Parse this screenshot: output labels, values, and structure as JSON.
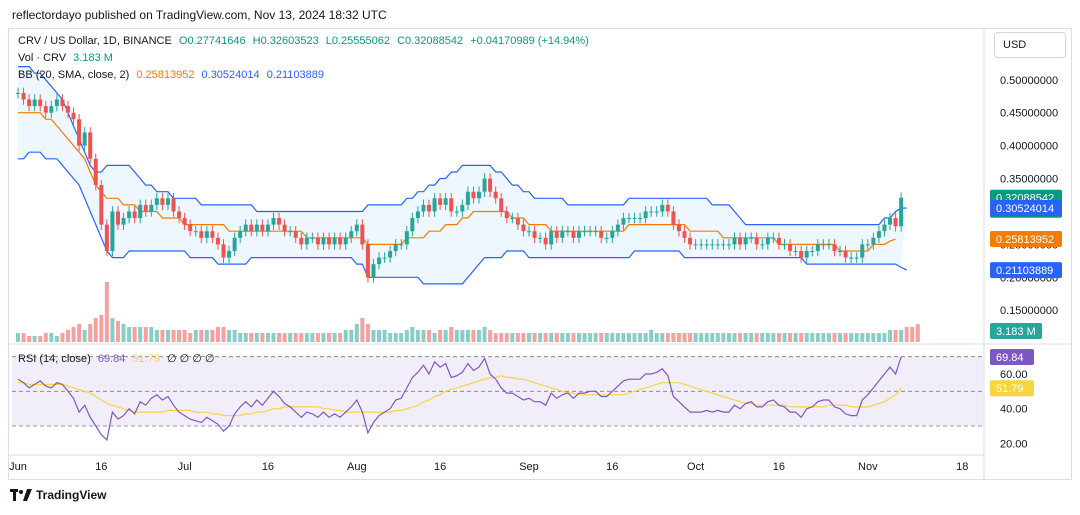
{
  "header": {
    "publish_text": "reflectordayo published on TradingView.com, Nov 13, 2024 18:32 UTC",
    "currency": "USD"
  },
  "legend": {
    "main": {
      "title": "CRV / US Dollar, 1D, BINANCE",
      "open": "O0.27741646",
      "high": "H0.32603523",
      "low": "L0.25555062",
      "close": "C0.32088542",
      "change": "+0.04170989 (+14.94%)"
    },
    "vol": {
      "label": "Vol · CRV",
      "value": "3.183 M"
    },
    "bb": {
      "label": "BB (20, SMA, close, 2)",
      "basis": "0.25813952",
      "upper": "0.30524014",
      "lower": "0.21103889"
    },
    "rsi": {
      "label": "RSI (14, close)",
      "value": "69.84",
      "ma": "51.79",
      "extra": "∅ ∅ ∅ ∅"
    }
  },
  "footer": {
    "brand": "TradingView"
  },
  "colors": {
    "up": "#26a69a",
    "down": "#ef5350",
    "bb_basis": "#f57c00",
    "bb_band": "#2962ff",
    "bb_fill": "#e3f2fd",
    "rsi_line": "#7e57c2",
    "rsi_ma": "#f7d540",
    "rsi_bg": "#ede7f6",
    "last_price": "#089981"
  },
  "chart_data": {
    "type": "candlestick",
    "xlabel": "",
    "ylabel": "",
    "price_axis": {
      "ticks": [
        "0.50000000",
        "0.45000000",
        "0.40000000",
        "0.35000000",
        "0.30000000",
        "0.25000000",
        "0.20000000",
        "0.15000000"
      ],
      "tick_values": [
        0.5,
        0.45,
        0.4,
        0.35,
        0.3,
        0.25,
        0.2,
        0.15
      ],
      "range": [
        0.12,
        0.53
      ]
    },
    "time_axis": {
      "ticks": [
        "Jun",
        "16",
        "Jul",
        "16",
        "Aug",
        "16",
        "Sep",
        "16",
        "Oct",
        "16",
        "Nov",
        "18"
      ],
      "tick_day_index": [
        0,
        15,
        30,
        45,
        61,
        76,
        92,
        107,
        122,
        137,
        153,
        170
      ]
    },
    "price_tags": [
      {
        "label": "0.32088542",
        "sub": "05:27:50",
        "value": 0.3209,
        "color": "#089981"
      },
      {
        "label": "0.30524014",
        "value": 0.3052,
        "color": "#2962ff"
      },
      {
        "label": "0.25813952",
        "value": 0.2581,
        "color": "#f57c00"
      },
      {
        "label": "0.21103889",
        "value": 0.211,
        "color": "#2962ff"
      }
    ],
    "vol_tag": {
      "label": "3.183 M",
      "color": "#26a69a"
    },
    "rsi_axis": {
      "ticks": [
        "60.00",
        "40.00",
        "20.00"
      ],
      "tick_values": [
        60,
        40,
        20
      ],
      "range": [
        15,
        75
      ],
      "upper_band": 70,
      "mid": 50,
      "lower_band": 30
    },
    "rsi_tags": [
      {
        "label": "69.84",
        "value": 69.84,
        "color": "#7e57c2"
      },
      {
        "label": "51.79",
        "value": 51.79,
        "color": "#f7d540"
      }
    ],
    "closes": [
      0.48,
      0.47,
      0.46,
      0.47,
      0.46,
      0.45,
      0.46,
      0.47,
      0.46,
      0.45,
      0.44,
      0.4,
      0.42,
      0.38,
      0.34,
      0.28,
      0.24,
      0.3,
      0.28,
      0.29,
      0.3,
      0.29,
      0.31,
      0.3,
      0.31,
      0.32,
      0.31,
      0.32,
      0.3,
      0.29,
      0.28,
      0.27,
      0.27,
      0.26,
      0.27,
      0.26,
      0.25,
      0.23,
      0.24,
      0.26,
      0.27,
      0.28,
      0.27,
      0.28,
      0.27,
      0.28,
      0.29,
      0.28,
      0.27,
      0.27,
      0.26,
      0.25,
      0.26,
      0.26,
      0.25,
      0.26,
      0.25,
      0.26,
      0.25,
      0.26,
      0.27,
      0.28,
      0.25,
      0.2,
      0.22,
      0.23,
      0.23,
      0.24,
      0.25,
      0.25,
      0.27,
      0.29,
      0.3,
      0.31,
      0.3,
      0.32,
      0.31,
      0.32,
      0.3,
      0.3,
      0.31,
      0.33,
      0.32,
      0.33,
      0.35,
      0.33,
      0.32,
      0.3,
      0.29,
      0.29,
      0.28,
      0.27,
      0.27,
      0.26,
      0.26,
      0.25,
      0.27,
      0.26,
      0.27,
      0.27,
      0.26,
      0.27,
      0.27,
      0.27,
      0.27,
      0.26,
      0.26,
      0.27,
      0.28,
      0.29,
      0.29,
      0.29,
      0.29,
      0.3,
      0.3,
      0.3,
      0.31,
      0.3,
      0.28,
      0.27,
      0.26,
      0.25,
      0.25,
      0.25,
      0.25,
      0.25,
      0.25,
      0.25,
      0.25,
      0.26,
      0.25,
      0.26,
      0.26,
      0.25,
      0.25,
      0.26,
      0.26,
      0.25,
      0.25,
      0.24,
      0.24,
      0.23,
      0.24,
      0.24,
      0.25,
      0.25,
      0.25,
      0.24,
      0.24,
      0.23,
      0.23,
      0.23,
      0.25,
      0.25,
      0.26,
      0.27,
      0.28,
      0.29,
      0.2774,
      0.3209
    ],
    "bb_upper": [
      0.52,
      0.52,
      0.52,
      0.51,
      0.51,
      0.5,
      0.49,
      0.48,
      0.47,
      0.45,
      0.43,
      0.41,
      0.39,
      0.37,
      0.36,
      0.36,
      0.37,
      0.37,
      0.37,
      0.37,
      0.37,
      0.36,
      0.35,
      0.34,
      0.34,
      0.33,
      0.33,
      0.33,
      0.32,
      0.32,
      0.32,
      0.32,
      0.32,
      0.31,
      0.31,
      0.31,
      0.31,
      0.31,
      0.31,
      0.31,
      0.31,
      0.31,
      0.31,
      0.3,
      0.3,
      0.3,
      0.3,
      0.3,
      0.3,
      0.3,
      0.3,
      0.3,
      0.3,
      0.3,
      0.3,
      0.3,
      0.3,
      0.3,
      0.3,
      0.3,
      0.3,
      0.3,
      0.3,
      0.31,
      0.31,
      0.31,
      0.31,
      0.31,
      0.31,
      0.31,
      0.32,
      0.32,
      0.33,
      0.33,
      0.34,
      0.34,
      0.35,
      0.35,
      0.36,
      0.36,
      0.37,
      0.37,
      0.37,
      0.37,
      0.37,
      0.37,
      0.36,
      0.36,
      0.35,
      0.34,
      0.34,
      0.33,
      0.33,
      0.32,
      0.32,
      0.32,
      0.32,
      0.32,
      0.32,
      0.31,
      0.31,
      0.31,
      0.31,
      0.31,
      0.31,
      0.31,
      0.31,
      0.31,
      0.31,
      0.31,
      0.32,
      0.32,
      0.32,
      0.32,
      0.32,
      0.32,
      0.32,
      0.32,
      0.32,
      0.32,
      0.32,
      0.32,
      0.32,
      0.32,
      0.32,
      0.31,
      0.31,
      0.31,
      0.31,
      0.3,
      0.29,
      0.28,
      0.28,
      0.28,
      0.28,
      0.28,
      0.28,
      0.28,
      0.28,
      0.28,
      0.28,
      0.28,
      0.28,
      0.28,
      0.28,
      0.28,
      0.28,
      0.28,
      0.28,
      0.28,
      0.28,
      0.28,
      0.28,
      0.28,
      0.28,
      0.28,
      0.29,
      0.29,
      0.3,
      0.305,
      0.3052
    ],
    "bb_basis": [
      0.45,
      0.45,
      0.45,
      0.45,
      0.45,
      0.44,
      0.44,
      0.43,
      0.42,
      0.41,
      0.4,
      0.39,
      0.38,
      0.36,
      0.34,
      0.33,
      0.32,
      0.32,
      0.32,
      0.31,
      0.31,
      0.31,
      0.3,
      0.3,
      0.3,
      0.3,
      0.29,
      0.29,
      0.29,
      0.29,
      0.28,
      0.28,
      0.28,
      0.28,
      0.28,
      0.28,
      0.28,
      0.28,
      0.27,
      0.27,
      0.27,
      0.27,
      0.27,
      0.27,
      0.27,
      0.27,
      0.27,
      0.27,
      0.27,
      0.27,
      0.27,
      0.27,
      0.26,
      0.26,
      0.26,
      0.26,
      0.26,
      0.26,
      0.26,
      0.26,
      0.26,
      0.26,
      0.26,
      0.25,
      0.25,
      0.25,
      0.25,
      0.25,
      0.25,
      0.25,
      0.26,
      0.26,
      0.26,
      0.26,
      0.27,
      0.27,
      0.27,
      0.28,
      0.28,
      0.28,
      0.29,
      0.29,
      0.3,
      0.3,
      0.3,
      0.3,
      0.3,
      0.3,
      0.3,
      0.29,
      0.29,
      0.29,
      0.28,
      0.28,
      0.28,
      0.28,
      0.27,
      0.27,
      0.27,
      0.27,
      0.27,
      0.27,
      0.27,
      0.27,
      0.27,
      0.27,
      0.27,
      0.27,
      0.27,
      0.27,
      0.28,
      0.28,
      0.28,
      0.28,
      0.28,
      0.28,
      0.28,
      0.28,
      0.28,
      0.28,
      0.28,
      0.27,
      0.27,
      0.27,
      0.27,
      0.27,
      0.27,
      0.26,
      0.26,
      0.26,
      0.26,
      0.26,
      0.26,
      0.26,
      0.26,
      0.26,
      0.26,
      0.25,
      0.25,
      0.25,
      0.25,
      0.25,
      0.25,
      0.25,
      0.25,
      0.25,
      0.25,
      0.25,
      0.24,
      0.24,
      0.24,
      0.24,
      0.24,
      0.24,
      0.25,
      0.25,
      0.25,
      0.255,
      0.2581
    ],
    "bb_lower": [
      0.38,
      0.38,
      0.39,
      0.39,
      0.39,
      0.38,
      0.38,
      0.38,
      0.37,
      0.36,
      0.35,
      0.34,
      0.32,
      0.3,
      0.28,
      0.26,
      0.24,
      0.23,
      0.23,
      0.23,
      0.24,
      0.24,
      0.24,
      0.24,
      0.24,
      0.24,
      0.24,
      0.24,
      0.24,
      0.24,
      0.24,
      0.23,
      0.23,
      0.23,
      0.23,
      0.23,
      0.22,
      0.22,
      0.22,
      0.22,
      0.22,
      0.22,
      0.23,
      0.23,
      0.23,
      0.23,
      0.23,
      0.23,
      0.23,
      0.23,
      0.23,
      0.23,
      0.23,
      0.23,
      0.23,
      0.23,
      0.23,
      0.23,
      0.23,
      0.23,
      0.23,
      0.22,
      0.22,
      0.2,
      0.2,
      0.2,
      0.2,
      0.2,
      0.2,
      0.2,
      0.2,
      0.2,
      0.2,
      0.19,
      0.19,
      0.19,
      0.19,
      0.19,
      0.19,
      0.19,
      0.19,
      0.2,
      0.21,
      0.22,
      0.23,
      0.23,
      0.23,
      0.23,
      0.24,
      0.24,
      0.24,
      0.24,
      0.23,
      0.23,
      0.23,
      0.23,
      0.23,
      0.23,
      0.23,
      0.23,
      0.23,
      0.23,
      0.23,
      0.23,
      0.23,
      0.23,
      0.23,
      0.23,
      0.23,
      0.23,
      0.23,
      0.24,
      0.24,
      0.24,
      0.24,
      0.24,
      0.24,
      0.24,
      0.24,
      0.24,
      0.23,
      0.23,
      0.23,
      0.23,
      0.23,
      0.23,
      0.23,
      0.23,
      0.23,
      0.23,
      0.23,
      0.23,
      0.23,
      0.23,
      0.23,
      0.23,
      0.23,
      0.23,
      0.23,
      0.23,
      0.23,
      0.23,
      0.22,
      0.22,
      0.22,
      0.22,
      0.22,
      0.22,
      0.22,
      0.22,
      0.22,
      0.22,
      0.22,
      0.22,
      0.22,
      0.22,
      0.22,
      0.22,
      0.22,
      0.215,
      0.211
    ],
    "volume": [
      3,
      3,
      2,
      2,
      2,
      3,
      3,
      2,
      3,
      4,
      5,
      6,
      4,
      6,
      8,
      9,
      20,
      8,
      7,
      6,
      5,
      5,
      5,
      5,
      5,
      4,
      4,
      4,
      4,
      4,
      4,
      3,
      4,
      4,
      4,
      4,
      5,
      5,
      4,
      4,
      3,
      3,
      3,
      3,
      3,
      3,
      3,
      3,
      3,
      3,
      3,
      3,
      3,
      3,
      3,
      3,
      3,
      3,
      3,
      4,
      4,
      6,
      8,
      6,
      4,
      4,
      4,
      3,
      3,
      3,
      4,
      5,
      4,
      4,
      4,
      3,
      4,
      4,
      5,
      4,
      4,
      4,
      4,
      4,
      5,
      4,
      3,
      3,
      3,
      3,
      3,
      3,
      3,
      3,
      3,
      3,
      3,
      3,
      3,
      3,
      3,
      3,
      3,
      3,
      3,
      3,
      3,
      3,
      3,
      3,
      3,
      3,
      3,
      3,
      4,
      3,
      3,
      3,
      3,
      3,
      3,
      3,
      3,
      3,
      3,
      3,
      3,
      3,
      3,
      3,
      3,
      3,
      3,
      3,
      3,
      3,
      3,
      3,
      3,
      3,
      3,
      3,
      3,
      3,
      3,
      3,
      3,
      3,
      3,
      3,
      3,
      3,
      3,
      3,
      3,
      3,
      3,
      4,
      4,
      4,
      5,
      5,
      6
    ],
    "rsi": [
      57,
      55,
      52,
      54,
      56,
      53,
      52,
      55,
      54,
      50,
      46,
      38,
      42,
      35,
      30,
      25,
      22,
      38,
      34,
      36,
      40,
      37,
      44,
      42,
      46,
      48,
      45,
      47,
      42,
      38,
      36,
      34,
      33,
      32,
      35,
      33,
      31,
      27,
      30,
      37,
      41,
      44,
      41,
      45,
      42,
      46,
      50,
      47,
      43,
      41,
      38,
      35,
      38,
      37,
      35,
      38,
      35,
      37,
      35,
      38,
      41,
      45,
      38,
      26,
      32,
      36,
      38,
      40,
      45,
      46,
      52,
      58,
      61,
      65,
      60,
      67,
      64,
      66,
      58,
      59,
      61,
      66,
      62,
      64,
      69,
      60,
      57,
      52,
      49,
      49,
      47,
      45,
      46,
      44,
      44,
      42,
      49,
      46,
      48,
      49,
      46,
      49,
      49,
      50,
      50,
      47,
      47,
      50,
      53,
      56,
      57,
      57,
      57,
      60,
      60,
      61,
      63,
      59,
      47,
      44,
      41,
      38,
      38,
      38,
      39,
      38,
      39,
      38,
      38,
      42,
      40,
      43,
      44,
      41,
      41,
      44,
      45,
      42,
      41,
      38,
      38,
      35,
      40,
      41,
      44,
      45,
      45,
      41,
      40,
      37,
      36,
      36,
      45,
      48,
      52,
      56,
      60,
      64,
      60,
      69.84
    ],
    "rsi_ma": [
      55,
      55,
      54,
      54,
      54,
      54,
      54,
      54,
      54,
      53,
      52,
      51,
      50,
      49,
      47,
      45,
      43,
      42,
      41,
      40,
      39,
      38,
      38,
      38,
      38,
      38,
      38,
      39,
      39,
      39,
      39,
      39,
      38,
      38,
      38,
      37,
      37,
      36,
      36,
      36,
      36,
      37,
      37,
      38,
      38,
      39,
      40,
      40,
      41,
      41,
      41,
      41,
      41,
      41,
      41,
      40,
      40,
      39,
      39,
      38,
      38,
      38,
      38,
      38,
      38,
      38,
      38,
      38,
      39,
      39,
      40,
      41,
      42,
      44,
      45,
      47,
      48,
      50,
      51,
      52,
      53,
      54,
      55,
      56,
      57,
      58,
      58,
      59,
      58,
      58,
      57,
      57,
      56,
      55,
      54,
      53,
      52,
      51,
      50,
      49,
      49,
      48,
      48,
      48,
      48,
      48,
      48,
      48,
      48,
      48,
      49,
      50,
      51,
      52,
      53,
      54,
      55,
      55,
      55,
      55,
      54,
      53,
      52,
      51,
      50,
      49,
      48,
      47,
      46,
      45,
      44,
      43,
      43,
      42,
      42,
      42,
      42,
      42,
      42,
      41,
      41,
      41,
      41,
      41,
      41,
      41,
      42,
      42,
      42,
      42,
      41,
      41,
      41,
      41,
      42,
      43,
      44,
      46,
      48,
      51.79
    ]
  }
}
